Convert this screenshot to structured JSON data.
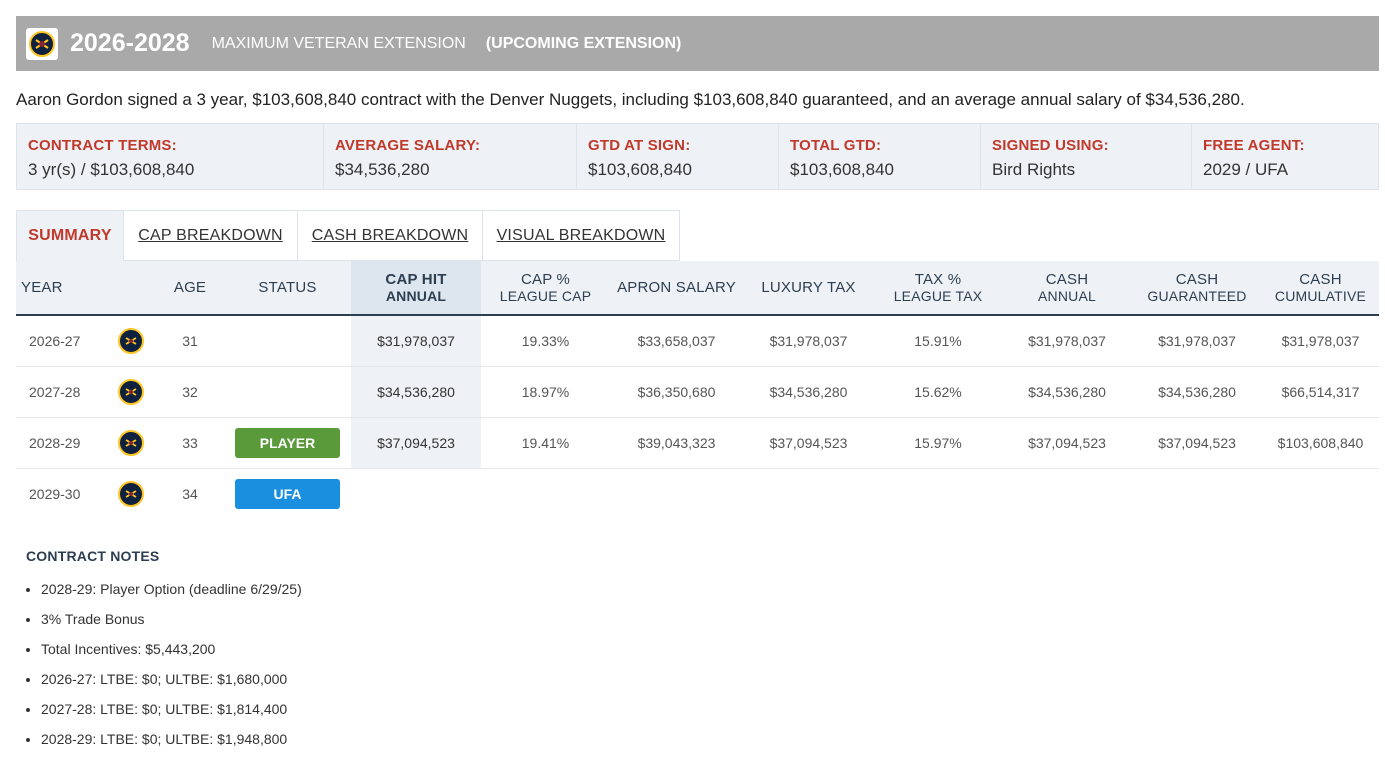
{
  "header": {
    "years": "2026-2028",
    "extension_type": "MAXIMUM VETERAN EXTENSION",
    "extension_status": "(UPCOMING EXTENSION)",
    "bg_color": "#a9a9a9"
  },
  "summary_text": "Aaron Gordon signed a 3 year, $103,608,840 contract with the Denver Nuggets, including $103,608,840 guaranteed, and an average annual salary of $34,536,280.",
  "terms": [
    {
      "label": "CONTRACT TERMS:",
      "value": "3 yr(s) / $103,608,840"
    },
    {
      "label": "AVERAGE SALARY:",
      "value": "$34,536,280"
    },
    {
      "label": "GTD AT SIGN:",
      "value": "$103,608,840"
    },
    {
      "label": "TOTAL GTD:",
      "value": "$103,608,840"
    },
    {
      "label": "SIGNED USING:",
      "value": "Bird Rights"
    },
    {
      "label": "FREE AGENT:",
      "value": "2029 / UFA"
    }
  ],
  "tabs": [
    {
      "label": "SUMMARY",
      "active": true
    },
    {
      "label": "CAP BREAKDOWN",
      "active": false
    },
    {
      "label": "CASH BREAKDOWN",
      "active": false
    },
    {
      "label": "VISUAL BREAKDOWN",
      "active": false
    }
  ],
  "table": {
    "headers": {
      "year": "YEAR",
      "age": "AGE",
      "status": "STATUS",
      "cap_hit": "CAP HIT",
      "cap_hit_sub": "ANNUAL",
      "cap_pct": "CAP %",
      "cap_pct_sub": "LEAGUE CAP",
      "apron": "APRON SALARY",
      "lux_tax": "LUXURY TAX",
      "tax_pct": "TAX %",
      "tax_pct_sub": "LEAGUE TAX",
      "cash": "CASH",
      "cash_sub": "ANNUAL",
      "cash_gtd": "CASH",
      "cash_gtd_sub": "GUARANTEED",
      "cash_cum": "CASH",
      "cash_cum_sub": "CUMULATIVE"
    },
    "rows": [
      {
        "year": "2026-27",
        "age": "31",
        "status": "",
        "cap_hit": "$31,978,037",
        "cap_pct": "19.33%",
        "apron": "$33,658,037",
        "lux_tax": "$31,978,037",
        "tax_pct": "15.91%",
        "cash": "$31,978,037",
        "cash_gtd": "$31,978,037",
        "cash_cum": "$31,978,037"
      },
      {
        "year": "2027-28",
        "age": "32",
        "status": "",
        "cap_hit": "$34,536,280",
        "cap_pct": "18.97%",
        "apron": "$36,350,680",
        "lux_tax": "$34,536,280",
        "tax_pct": "15.62%",
        "cash": "$34,536,280",
        "cash_gtd": "$34,536,280",
        "cash_cum": "$66,514,317"
      },
      {
        "year": "2028-29",
        "age": "33",
        "status": "PLAYER",
        "status_color": "#5a9a3a",
        "cap_hit": "$37,094,523",
        "cap_pct": "19.41%",
        "apron": "$39,043,323",
        "lux_tax": "$37,094,523",
        "tax_pct": "15.97%",
        "cash": "$37,094,523",
        "cash_gtd": "$37,094,523",
        "cash_cum": "$103,608,840"
      },
      {
        "year": "2029-30",
        "age": "34",
        "status": "UFA",
        "status_color": "#1a8fe0"
      }
    ],
    "team_logo_icon": "nuggets-logo-icon"
  },
  "notes": {
    "title": "CONTRACT NOTES",
    "items": [
      "2028-29: Player Option (deadline 6/29/25)",
      "3% Trade Bonus",
      "Total Incentives: $5,443,200",
      "2026-27: LTBE: $0; ULTBE: $1,680,000",
      "2027-28: LTBE: $0; ULTBE: $1,814,400",
      "2028-29: LTBE: $0; ULTBE: $1,948,800"
    ]
  }
}
